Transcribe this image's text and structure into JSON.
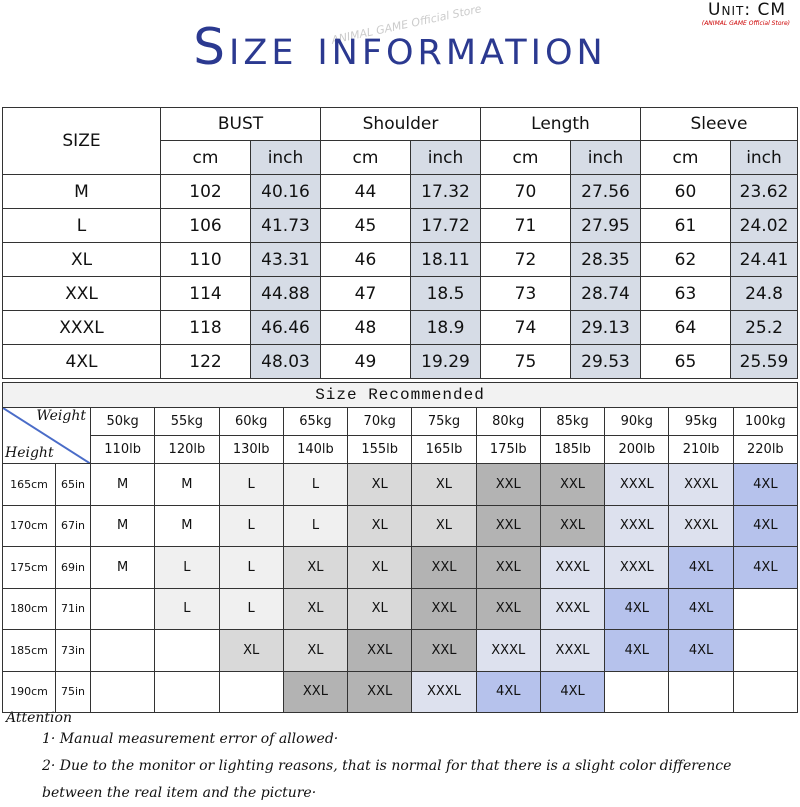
{
  "header": {
    "title": "Size information",
    "unit": "Unit: CM",
    "unit_note": "(ANIMAL GAME Official Store)",
    "watermark": "ANIMAL GAME Official Store"
  },
  "size_table": {
    "size_label": "SIZE",
    "measures": [
      "BUST",
      "Shoulder",
      "Length",
      "Sleeve"
    ],
    "units": [
      "cm",
      "inch"
    ],
    "rows": [
      [
        "M",
        "102",
        "40.16",
        "44",
        "17.32",
        "70",
        "27.56",
        "60",
        "23.62"
      ],
      [
        "L",
        "106",
        "41.73",
        "45",
        "17.72",
        "71",
        "27.95",
        "61",
        "24.02"
      ],
      [
        "XL",
        "110",
        "43.31",
        "46",
        "18.11",
        "72",
        "28.35",
        "62",
        "24.41"
      ],
      [
        "XXL",
        "114",
        "44.88",
        "47",
        "18.5",
        "73",
        "28.74",
        "63",
        "24.8"
      ],
      [
        "XXXL",
        "118",
        "46.46",
        "48",
        "18.9",
        "74",
        "29.13",
        "64",
        "25.2"
      ],
      [
        "4XL",
        "122",
        "48.03",
        "49",
        "19.29",
        "75",
        "29.53",
        "65",
        "25.59"
      ]
    ]
  },
  "recommend": {
    "title": "Size Recommended",
    "weight_label": "Weight",
    "height_label": "Height",
    "weights_kg": [
      "50kg",
      "55kg",
      "60kg",
      "65kg",
      "70kg",
      "75kg",
      "80kg",
      "85kg",
      "90kg",
      "95kg",
      "100kg"
    ],
    "weights_lb": [
      "110lb",
      "120lb",
      "130lb",
      "140lb",
      "155lb",
      "165lb",
      "175lb",
      "185lb",
      "200lb",
      "210lb",
      "220lb"
    ],
    "heights": [
      [
        "165cm",
        "65in"
      ],
      [
        "170cm",
        "67in"
      ],
      [
        "175cm",
        "69in"
      ],
      [
        "180cm",
        "71in"
      ],
      [
        "185cm",
        "73in"
      ],
      [
        "190cm",
        "75in"
      ]
    ],
    "rows": [
      [
        "M",
        "M",
        "L",
        "L",
        "XL",
        "XL",
        "XXL",
        "XXL",
        "XXXL",
        "XXXL",
        "4XL"
      ],
      [
        "M",
        "M",
        "L",
        "L",
        "XL",
        "XL",
        "XXL",
        "XXL",
        "XXXL",
        "XXXL",
        "4XL"
      ],
      [
        "M",
        "L",
        "L",
        "XL",
        "XL",
        "XXL",
        "XXL",
        "XXXL",
        "XXXL",
        "4XL",
        "4XL"
      ],
      [
        null,
        "L",
        "L",
        "XL",
        "XL",
        "XXL",
        "XXL",
        "XXXL",
        "4XL",
        "4XL",
        null
      ],
      [
        null,
        null,
        "XL",
        "XL",
        "XXL",
        "XXL",
        "XXXL",
        "XXXL",
        "4XL",
        "4XL",
        null
      ],
      [
        null,
        null,
        null,
        "XXL",
        "XXL",
        "XXXL",
        "4XL",
        "4XL",
        null,
        null,
        null
      ]
    ],
    "cell_colors": {
      "M": "#ffffff",
      "L": "#f0f0f0",
      "XL": "#d9d9d9",
      "XXL": "#b3b3b3",
      "XXXL": "#dde1ee",
      "4XL": "#b6c2ec"
    }
  },
  "attention": {
    "title": "Attention",
    "notes": [
      "1· Manual measurement error of allowed·",
      "2·  Due to the monitor or lighting reasons, that is normal for that there is a slight color difference between the real item and the picture·"
    ]
  }
}
